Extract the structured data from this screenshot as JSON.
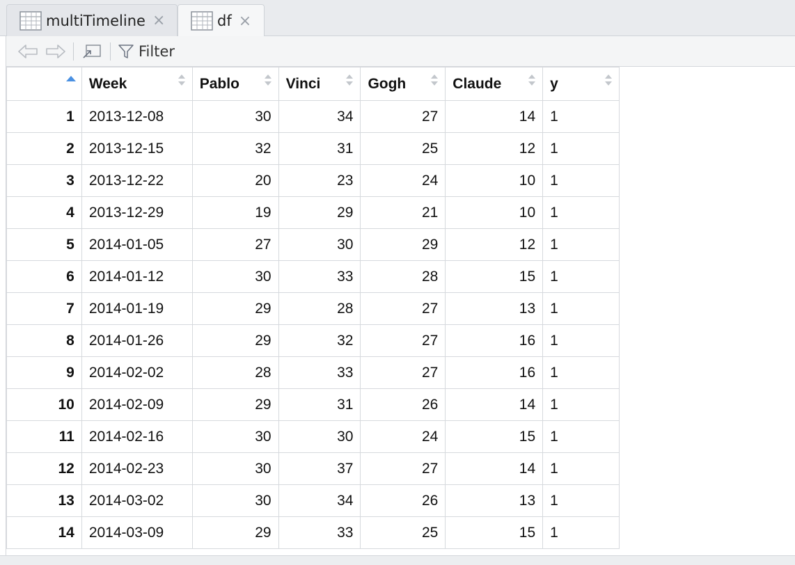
{
  "tabs": [
    {
      "label": "multiTimeline",
      "close": "×"
    },
    {
      "label": "df",
      "close": "×"
    }
  ],
  "toolbar": {
    "filter_label": "Filter"
  },
  "table": {
    "columns": [
      "Week",
      "Pablo",
      "Vinci",
      "Gogh",
      "Claude",
      "y"
    ],
    "rows": [
      {
        "idx": "1",
        "cells": [
          "2013-12-08",
          "30",
          "34",
          "27",
          "14",
          "1"
        ]
      },
      {
        "idx": "2",
        "cells": [
          "2013-12-15",
          "32",
          "31",
          "25",
          "12",
          "1"
        ]
      },
      {
        "idx": "3",
        "cells": [
          "2013-12-22",
          "20",
          "23",
          "24",
          "10",
          "1"
        ]
      },
      {
        "idx": "4",
        "cells": [
          "2013-12-29",
          "19",
          "29",
          "21",
          "10",
          "1"
        ]
      },
      {
        "idx": "5",
        "cells": [
          "2014-01-05",
          "27",
          "30",
          "29",
          "12",
          "1"
        ]
      },
      {
        "idx": "6",
        "cells": [
          "2014-01-12",
          "30",
          "33",
          "28",
          "15",
          "1"
        ]
      },
      {
        "idx": "7",
        "cells": [
          "2014-01-19",
          "29",
          "28",
          "27",
          "13",
          "1"
        ]
      },
      {
        "idx": "8",
        "cells": [
          "2014-01-26",
          "29",
          "32",
          "27",
          "16",
          "1"
        ]
      },
      {
        "idx": "9",
        "cells": [
          "2014-02-02",
          "28",
          "33",
          "27",
          "16",
          "1"
        ]
      },
      {
        "idx": "10",
        "cells": [
          "2014-02-09",
          "29",
          "31",
          "26",
          "14",
          "1"
        ]
      },
      {
        "idx": "11",
        "cells": [
          "2014-02-16",
          "30",
          "30",
          "24",
          "15",
          "1"
        ]
      },
      {
        "idx": "12",
        "cells": [
          "2014-02-23",
          "30",
          "37",
          "27",
          "14",
          "1"
        ]
      },
      {
        "idx": "13",
        "cells": [
          "2014-03-02",
          "30",
          "34",
          "26",
          "13",
          "1"
        ]
      },
      {
        "idx": "14",
        "cells": [
          "2014-03-09",
          "29",
          "33",
          "25",
          "15",
          "1"
        ]
      }
    ]
  },
  "colors": {
    "sort_accent": "#4a90e2",
    "grid_border": "#d6d9dd"
  }
}
